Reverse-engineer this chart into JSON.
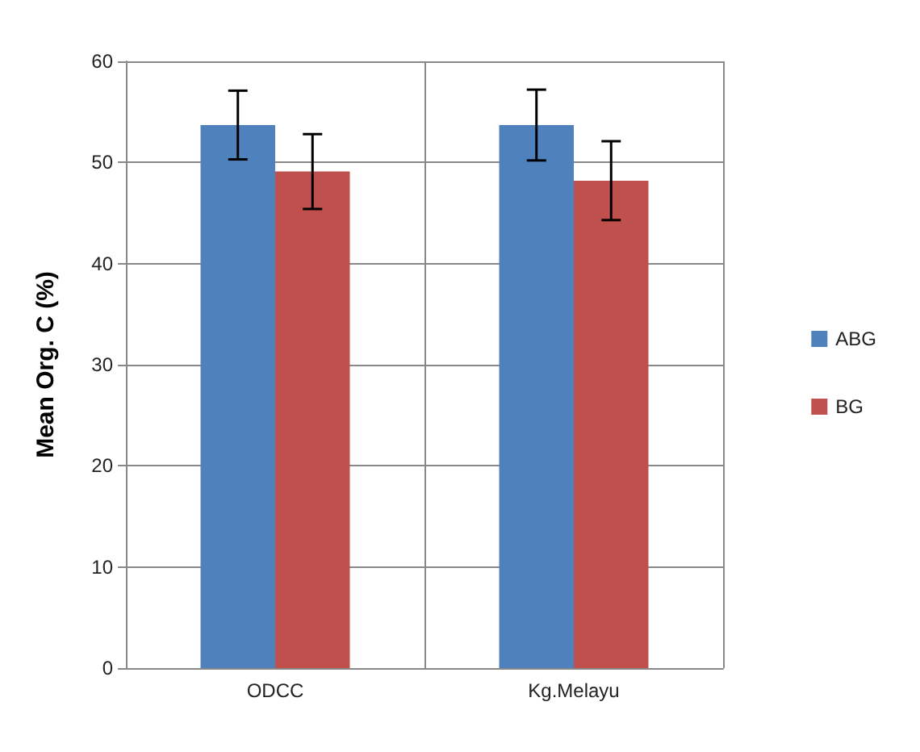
{
  "chart_data": {
    "type": "bar",
    "ylabel": "Mean Org. C (%)",
    "categories": [
      "ODCC",
      "Kg.Melayu"
    ],
    "series": [
      {
        "name": "ABG",
        "color": "#4f81bd",
        "values": [
          53.7,
          53.7
        ],
        "errors": [
          3.4,
          3.5
        ]
      },
      {
        "name": "BG",
        "color": "#c0504d",
        "values": [
          49.1,
          48.2
        ],
        "errors": [
          3.7,
          3.9
        ]
      }
    ],
    "ylim": [
      0,
      60
    ],
    "yticks": [
      0,
      10,
      20,
      30,
      40,
      50,
      60
    ],
    "grid": true,
    "legend": "right"
  }
}
